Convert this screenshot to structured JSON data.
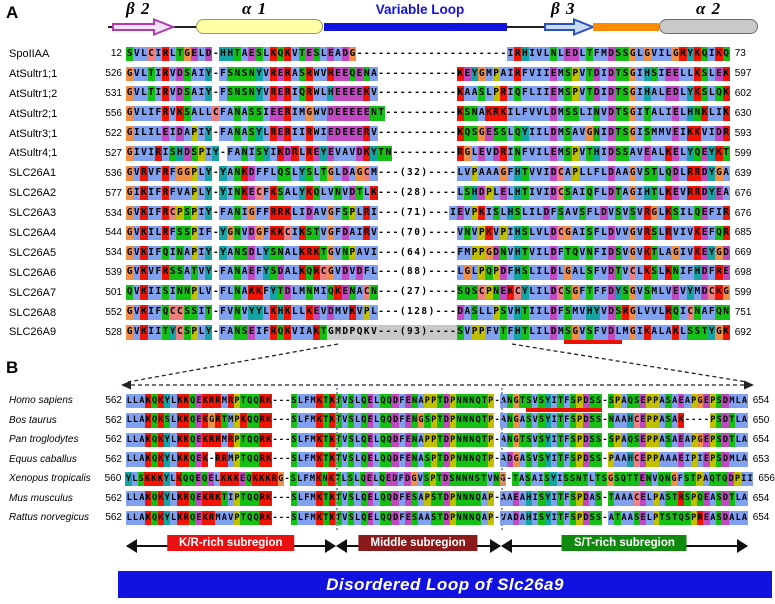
{
  "figure": {
    "colors": {
      "loop_blue": "#1212e0",
      "orange": "#ff8c00",
      "underline_red": "#ee1100",
      "highlight_gray": "#c9c9c9"
    },
    "residue_colors": {
      "A": "#80a0f0",
      "V": "#80a0f0",
      "L": "#80a0f0",
      "I": "#80a0f0",
      "M": "#80a0f0",
      "F": "#80a0f0",
      "W": "#80a0f0",
      "K": "#f01505",
      "R": "#f01505",
      "D": "#c048c0",
      "E": "#c048c0",
      "N": "#15c015",
      "Q": "#15c015",
      "S": "#15c015",
      "T": "#15c015",
      "C": "#f08080",
      "G": "#f09048",
      "P": "#c0c000",
      "H": "#15a4a4",
      "Y": "#15a4a4"
    },
    "highlight_color": "#c9c9c9",
    "underline_color": "#ee1100",
    "panelA": {
      "label": "A",
      "ss_labels": {
        "beta2": "β 2",
        "alpha1": "α 1",
        "variable_loop": "Variable Loop",
        "beta3": "β 3",
        "alpha2": "α 2"
      },
      "rows": [
        {
          "name": "SpoIIAA",
          "start": 12,
          "end": 73,
          "seq": "SVLCIRLTGELD-HHTAESLKQKVTESLEADG---------------------IRHIVLNLEDLTFMDSSGLGVILGRYKQIKQ"
        },
        {
          "name": "AtSultr1;1",
          "start": 526,
          "end": 597,
          "seq": "GVLTIRVDSAIY-FSNSNYVRERASRWVREEQENA-----------KEYGMPAIRFVIIEMSPVTDIDTSGIHSIEELLKSLEK"
        },
        {
          "name": "AtSultr1;2",
          "start": 531,
          "end": 602,
          "seq": "GVLTIRVDSAIY-FSNSNYVRERIQRWLHEEEEKV-----------KAASLPRIQFLIIEMSPVTDIDTSGIHALEDLYKSLQK"
        },
        {
          "name": "AtSultr2;1",
          "start": 556,
          "end": 630,
          "seq": "GVLIFRVKSALLCFANASSIEERIMGWVDEEEEENT----------KSNAKRKILFVVLDMSSLINVDTSGITALIELHNKLIK"
        },
        {
          "name": "AtSultr3;1",
          "start": 522,
          "end": 593,
          "seq": "GILILEIDAPIY-FANASYLRERIIRWIEDEEERV-----------KQSGESSLQYIILDMSAVGNIDTSGISMMVEIKKVIDR"
        },
        {
          "name": "AtSultr4;1",
          "start": 527,
          "end": 599,
          "seq": "GIVIRISHDSPIY-FANISYIKDRLREYEVAVDKYTN---------RGLEVDRINFVILEMSPVTHIDSSAVEALKELYQEYKT"
        },
        {
          "name": "SLC26A1",
          "start": 536,
          "end": 639,
          "seq": "GVRVFRFGGPLY-YANKDFFLQSLYSLTGLDAGCM---(32)----LVPAAAGFHTVVIDCAPLLFLDAAGVSTLQDLRRDYGA"
        },
        {
          "name": "SLC26A2",
          "start": 577,
          "end": 676,
          "seq": "GIKIFRFVAPLY-YINKECFKSALYKQLVNVDTLK---(28)----LSHDPLELHTIVIDCSAIQFLDTAGIHTLKEVRRDYEA"
        },
        {
          "name": "SLC26A3",
          "start": 534,
          "end": 676,
          "seq": "GVKIFRCPSPIY-FANIGFFRRKLIDAVGFSPLRI---(71)---IEVPKISLHSLILDFSAVSFLDVSVSVRGLKSILQEFIR"
        },
        {
          "name": "SLC26A4",
          "start": 544,
          "end": 685,
          "seq": "GVKILRFSSPIF-YGNVDGFKKCIKSTVGFDAIRV---(70)----VNVPKVPIHSLVLDCGAISFLDVVGVRSLRVIVKEFQR"
        },
        {
          "name": "SLC26A5",
          "start": 534,
          "end": 669,
          "seq": "GVKIFQINAPIY-YANSDLYSNALKRKTGVNPAVI---(64)----FMPPGDNVHTVILDFTQVNFIDSVGVKTLAGIVKEYGD"
        },
        {
          "name": "SLC26A6",
          "start": 539,
          "end": 698,
          "seq": "GVKVFRSSATVY-FANAEFYSDALKQRCGVDVDFL---(88)----LGLPQPDFHSLILDLGALSFVDTVCLKSLKNIFHDFRE"
        },
        {
          "name": "SLC26A7",
          "start": 501,
          "end": 599,
          "seq": "QVKIISINNPLV-FLNAKKFYTDLMNMIQKENACN---(27)----SQSCPNEKCYLILDCSGFTFFDYSGVSMLVEVYMDCKG"
        },
        {
          "name": "SLC26A8",
          "start": 552,
          "end": 751,
          "seq": "GVKIFQCCSSIT-FVNVYYLKHKLLKEVDMVKVPL---(128)---DASLLPSVHTIILDFSMVHYVDSRGLVVLRQICNAFQN"
        },
        {
          "name": "SLC26A9",
          "start": 528,
          "end": 692,
          "seq": "GVKIITYCSPLY-FANSEIFRQKVIAKTGMDPQKV---(93)----SVPPFVTFHTLILDMSGVSFVDLMGIKALAKLSSTYGK",
          "highlight": [
            28,
            45
          ],
          "underline": [
            61,
            68
          ]
        }
      ]
    },
    "panelB": {
      "label": "B",
      "rows": [
        {
          "name": "Homo sapiens",
          "start": 562,
          "end": 654,
          "seq": "LLAKQKYLKKQEKRRMRPTQQRK---SLFMKTKTVSLQELQQDFENAPPTDPNNNQTP-ANGTSVSYITFSPDSS-SPAQSEPPASAEAPGEPSDMLA",
          "underline": [
            63,
            74
          ]
        },
        {
          "name": "Bos taurus",
          "start": 562,
          "end": 650,
          "seq": "LLAKQKSLKKQEKGRTMPKQQRK---SLFMKTKTVSLQELQQDFENGSPTDPNNNQTP-ANGASVSYITFSPDSS-NAAHCEPPASAK----PSDTLA"
        },
        {
          "name": "Pan troglodytes",
          "start": 562,
          "end": 654,
          "seq": "LLAKQKYLKKQEKRRMRPTQQRK---SLFMKTKTVSLQELQQDFENAPPTDPNNNQTP-ANGTSVSYITFSPDSS-SPAQSEPPASAEAPGEPSDTLA"
        },
        {
          "name": "Equus caballus",
          "start": 562,
          "end": 653,
          "seq": "LLAKQKYLKKQEK-RRMPTQQRK---SLFMKTKTVSLQELQQDFENASPTDPNNNQTP-ADGASVSYITFSPDSS-PAAHCEPPAAAEIPIEPSDMLA"
        },
        {
          "name": "Xenopus tropicalis",
          "start": 560,
          "end": 656,
          "seq": "YLSKKKYLKQQEQELKKKEQKKKRG-SLFMKNKTLSLQELQEDFDGVSPTDSNNNSTVNG-TASAISYISSNTLTSGSQTTENVQNGFSTPAQTQDPII"
        },
        {
          "name": "Mus musculus",
          "start": 562,
          "end": 654,
          "seq": "LLAKQKYLKRQEKRKTIPTQQRK---SLFMKTKTVSLQELQQDFESAPSTDPNNNQAP-AAEAHISYITFSPDAS-TAAACELPASTRSPQEASDTLA"
        },
        {
          "name": "Rattus norvegicus",
          "start": 562,
          "end": 654,
          "seq": "LLAKQKYLKRQEKRMAVPTQQRK---SLFMKTKTVSLQELQQDFESAASTDPNNNQAP-VADAHISYITFSPDSS-ATAASELPTSTQSPREASDALA"
        }
      ],
      "separators": [
        33,
        59
      ],
      "subregions": [
        {
          "label": "K/R-rich subregion",
          "color": "#e81010",
          "range": [
            0,
            33
          ]
        },
        {
          "label": "Middle subregion",
          "color": "#8b1a1a",
          "range": [
            33,
            59
          ]
        },
        {
          "label": "S/T-rich subregion",
          "color": "#0f8a0f",
          "range": [
            59,
            98
          ]
        }
      ],
      "footer": "Disordered  Loop of Slc26a9"
    }
  }
}
